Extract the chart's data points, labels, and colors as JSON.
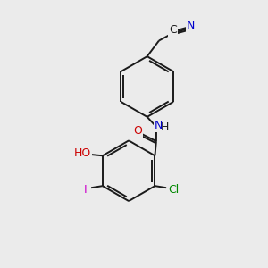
{
  "background_color": "#ebebeb",
  "bond_color": "#1a1a1a",
  "atom_colors": {
    "N": "#0000cc",
    "O": "#cc0000",
    "Cl": "#008800",
    "I": "#cc00cc",
    "C": "#1a1a1a"
  },
  "figsize": [
    3.0,
    3.0
  ],
  "dpi": 100
}
